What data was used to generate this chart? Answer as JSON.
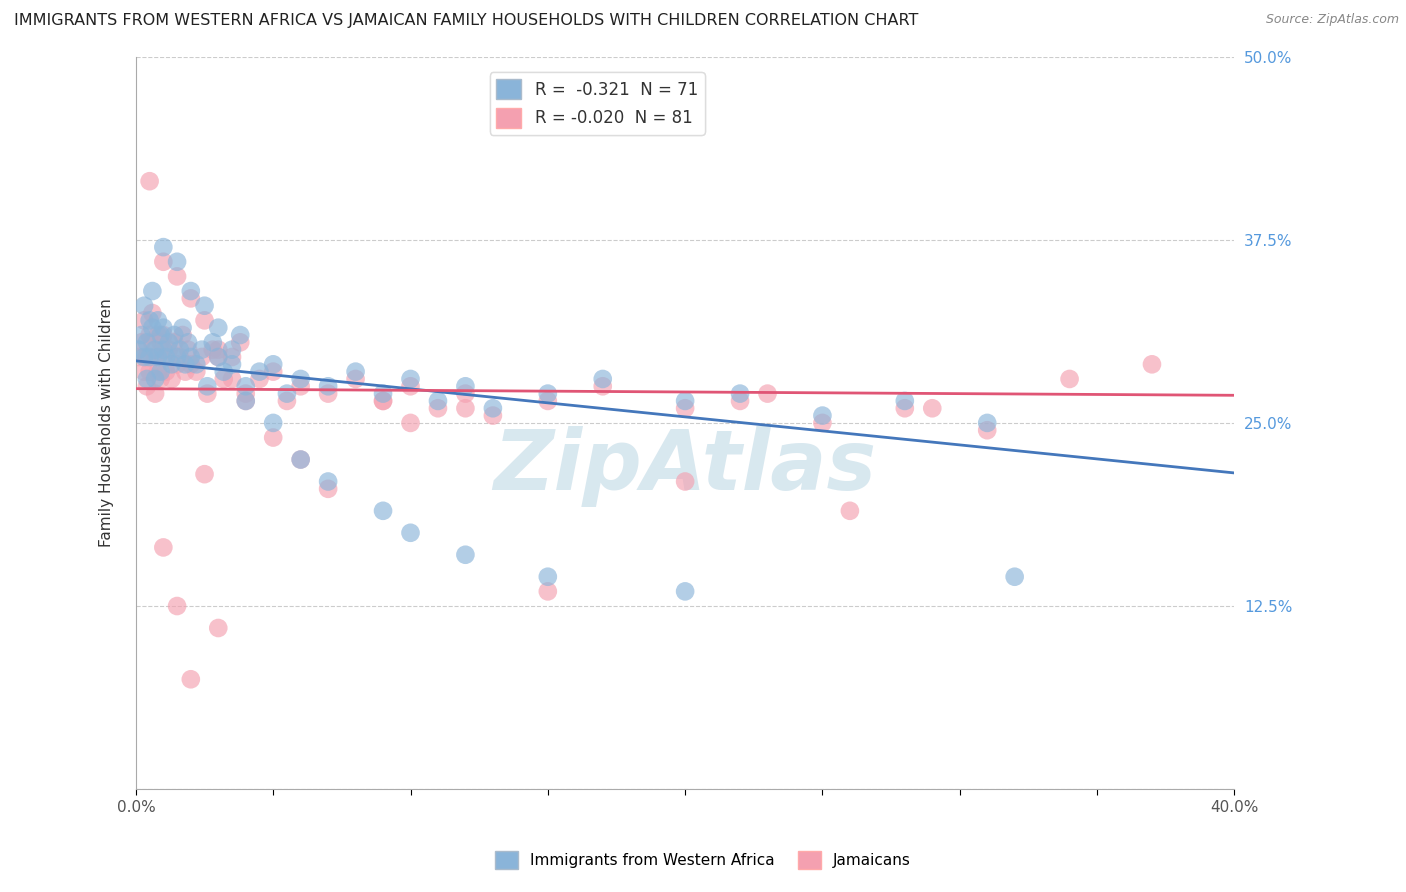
{
  "title": "IMMIGRANTS FROM WESTERN AFRICA VS JAMAICAN FAMILY HOUSEHOLDS WITH CHILDREN CORRELATION CHART",
  "source": "Source: ZipAtlas.com",
  "ylabel": "Family Households with Children",
  "xlim": [
    0.0,
    0.4
  ],
  "ylim": [
    0.0,
    0.5
  ],
  "xticks": [
    0.0,
    0.05,
    0.1,
    0.15,
    0.2,
    0.25,
    0.3,
    0.35,
    0.4
  ],
  "xtick_labels": [
    "0.0%",
    "",
    "",
    "",
    "",
    "",
    "",
    "",
    "40.0%"
  ],
  "xtick_major": [
    0.0,
    0.4
  ],
  "xtick_major_labels": [
    "0.0%",
    "40.0%"
  ],
  "yticks": [
    0.0,
    0.125,
    0.25,
    0.375,
    0.5
  ],
  "ytick_labels": [
    "",
    "12.5%",
    "25.0%",
    "37.5%",
    "50.0%"
  ],
  "blue_R": -0.321,
  "blue_N": 71,
  "pink_R": -0.02,
  "pink_N": 81,
  "blue_color": "#8ab4d9",
  "pink_color": "#f4a0b0",
  "blue_line_color": "#4477BB",
  "pink_line_color": "#E05575",
  "background_color": "#FFFFFF",
  "grid_color": "#CCCCCC",
  "watermark": "ZipAtlas",
  "watermark_color": "#AACCDD",
  "legend_label_blue": "Immigrants from Western Africa",
  "legend_label_pink": "Jamaicans",
  "blue_scatter_x": [
    0.001,
    0.002,
    0.003,
    0.003,
    0.004,
    0.004,
    0.005,
    0.005,
    0.006,
    0.006,
    0.007,
    0.007,
    0.008,
    0.008,
    0.009,
    0.009,
    0.01,
    0.01,
    0.011,
    0.012,
    0.013,
    0.014,
    0.015,
    0.016,
    0.017,
    0.018,
    0.019,
    0.02,
    0.022,
    0.024,
    0.026,
    0.028,
    0.03,
    0.032,
    0.035,
    0.038,
    0.04,
    0.045,
    0.05,
    0.055,
    0.06,
    0.07,
    0.08,
    0.09,
    0.1,
    0.11,
    0.12,
    0.13,
    0.15,
    0.17,
    0.2,
    0.22,
    0.25,
    0.28,
    0.31,
    0.01,
    0.015,
    0.02,
    0.025,
    0.03,
    0.035,
    0.04,
    0.05,
    0.06,
    0.07,
    0.09,
    0.1,
    0.12,
    0.15,
    0.2,
    0.32
  ],
  "blue_scatter_y": [
    0.3,
    0.31,
    0.295,
    0.33,
    0.305,
    0.28,
    0.32,
    0.295,
    0.315,
    0.34,
    0.3,
    0.28,
    0.32,
    0.295,
    0.31,
    0.285,
    0.3,
    0.315,
    0.295,
    0.305,
    0.29,
    0.31,
    0.295,
    0.3,
    0.315,
    0.29,
    0.305,
    0.295,
    0.29,
    0.3,
    0.275,
    0.305,
    0.295,
    0.285,
    0.3,
    0.31,
    0.275,
    0.285,
    0.29,
    0.27,
    0.28,
    0.275,
    0.285,
    0.27,
    0.28,
    0.265,
    0.275,
    0.26,
    0.27,
    0.28,
    0.265,
    0.27,
    0.255,
    0.265,
    0.25,
    0.37,
    0.36,
    0.34,
    0.33,
    0.315,
    0.29,
    0.265,
    0.25,
    0.225,
    0.21,
    0.19,
    0.175,
    0.16,
    0.145,
    0.135,
    0.145
  ],
  "pink_scatter_x": [
    0.001,
    0.002,
    0.003,
    0.003,
    0.004,
    0.004,
    0.005,
    0.005,
    0.006,
    0.006,
    0.007,
    0.007,
    0.008,
    0.008,
    0.009,
    0.009,
    0.01,
    0.01,
    0.011,
    0.012,
    0.013,
    0.014,
    0.015,
    0.016,
    0.017,
    0.018,
    0.019,
    0.02,
    0.022,
    0.024,
    0.026,
    0.028,
    0.03,
    0.032,
    0.035,
    0.038,
    0.04,
    0.045,
    0.05,
    0.055,
    0.06,
    0.07,
    0.08,
    0.09,
    0.1,
    0.11,
    0.12,
    0.13,
    0.15,
    0.17,
    0.2,
    0.22,
    0.25,
    0.28,
    0.31,
    0.005,
    0.01,
    0.015,
    0.02,
    0.025,
    0.03,
    0.035,
    0.04,
    0.05,
    0.06,
    0.07,
    0.09,
    0.1,
    0.12,
    0.15,
    0.2,
    0.23,
    0.26,
    0.29,
    0.01,
    0.015,
    0.02,
    0.025,
    0.03,
    0.34,
    0.37
  ],
  "pink_scatter_y": [
    0.295,
    0.305,
    0.285,
    0.32,
    0.295,
    0.275,
    0.31,
    0.285,
    0.305,
    0.325,
    0.295,
    0.27,
    0.31,
    0.285,
    0.305,
    0.28,
    0.295,
    0.31,
    0.285,
    0.3,
    0.28,
    0.305,
    0.29,
    0.295,
    0.31,
    0.285,
    0.3,
    0.29,
    0.285,
    0.295,
    0.27,
    0.3,
    0.295,
    0.28,
    0.295,
    0.305,
    0.27,
    0.28,
    0.285,
    0.265,
    0.275,
    0.27,
    0.28,
    0.265,
    0.275,
    0.26,
    0.27,
    0.255,
    0.265,
    0.275,
    0.26,
    0.265,
    0.25,
    0.26,
    0.245,
    0.415,
    0.36,
    0.35,
    0.335,
    0.32,
    0.3,
    0.28,
    0.265,
    0.24,
    0.225,
    0.205,
    0.265,
    0.25,
    0.26,
    0.135,
    0.21,
    0.27,
    0.19,
    0.26,
    0.165,
    0.125,
    0.075,
    0.215,
    0.11,
    0.28,
    0.29
  ]
}
